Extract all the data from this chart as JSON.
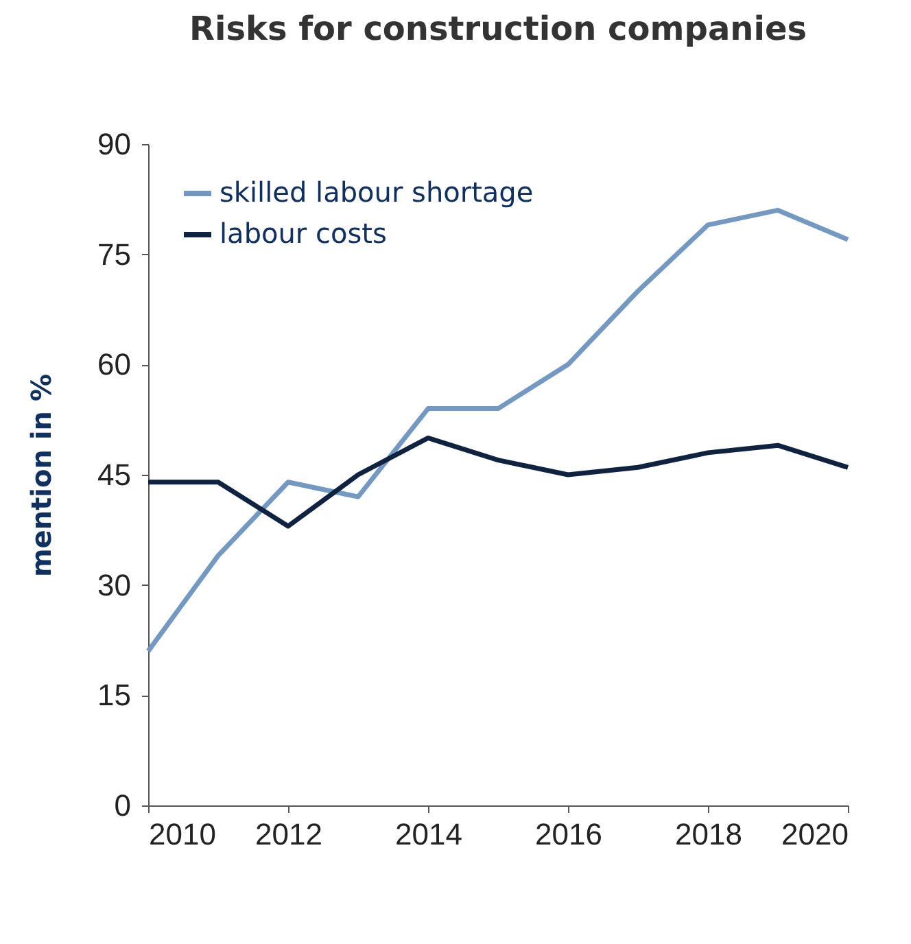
{
  "chart_data": {
    "type": "line",
    "title": "Risks for construction companies",
    "ylabel": "mention in %",
    "x": [
      2010,
      2011,
      2012,
      2013,
      2014,
      2015,
      2016,
      2017,
      2018,
      2019,
      2020
    ],
    "xlim": [
      2010,
      2020
    ],
    "xticks": [
      2010,
      2012,
      2014,
      2016,
      2018,
      2020
    ],
    "ylim": [
      0,
      90
    ],
    "yticks": [
      0,
      15,
      30,
      45,
      60,
      75,
      90
    ],
    "series": [
      {
        "name": "skilled labour shortage",
        "color": "#7398c2",
        "values": [
          21,
          34,
          44,
          42,
          54,
          54,
          60,
          70,
          79,
          81,
          77
        ]
      },
      {
        "name": "labour costs",
        "color": "#0f2340",
        "values": [
          44,
          44,
          38,
          45,
          50,
          47,
          45,
          46,
          48,
          49,
          46
        ]
      }
    ],
    "legend": "top left",
    "grid": false,
    "marker": "none",
    "line_style": "solid"
  }
}
